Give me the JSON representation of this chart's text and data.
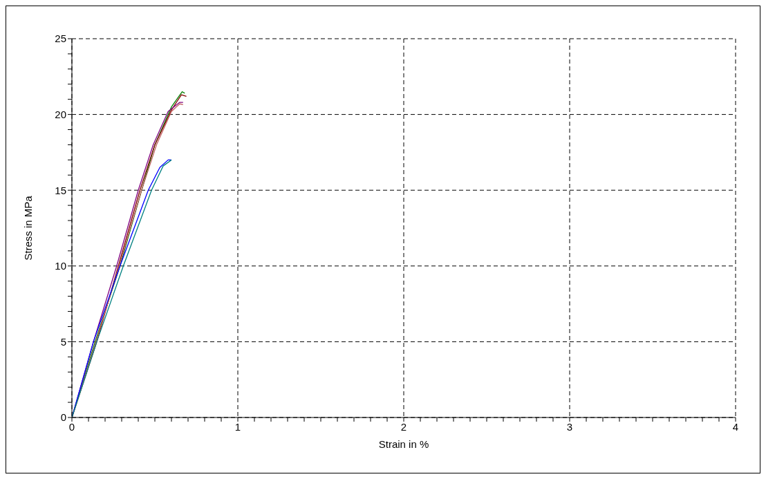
{
  "chart_data": {
    "type": "line",
    "xlabel": "Strain in %",
    "ylabel": "Stress in MPa",
    "xlim": [
      0,
      4
    ],
    "ylim": [
      0,
      25
    ],
    "xticks": [
      0,
      {
        "value": 0.1,
        "label": null
      },
      {
        "value": 0.2,
        "label": null
      },
      {
        "value": 0.3,
        "label": null
      },
      {
        "value": 0.4,
        "label": null
      },
      {
        "value": 0.5,
        "label": null
      },
      {
        "value": 0.6,
        "label": null
      },
      {
        "value": 0.7,
        "label": null
      },
      {
        "value": 0.8,
        "label": null
      },
      {
        "value": 0.9,
        "label": null
      },
      1,
      {
        "value": 1.1,
        "label": null
      },
      {
        "value": 1.2,
        "label": null
      },
      {
        "value": 1.3,
        "label": null
      },
      {
        "value": 1.4,
        "label": null
      },
      {
        "value": 1.5,
        "label": null
      },
      {
        "value": 1.6,
        "label": null
      },
      {
        "value": 1.7,
        "label": null
      },
      {
        "value": 1.8,
        "label": null
      },
      {
        "value": 1.9,
        "label": null
      },
      2,
      {
        "value": 2.1,
        "label": null
      },
      {
        "value": 2.2,
        "label": null
      },
      {
        "value": 2.3,
        "label": null
      },
      {
        "value": 2.4,
        "label": null
      },
      {
        "value": 2.5,
        "label": null
      },
      {
        "value": 2.6,
        "label": null
      },
      {
        "value": 2.7,
        "label": null
      },
      {
        "value": 2.8,
        "label": null
      },
      {
        "value": 2.9,
        "label": null
      },
      3,
      {
        "value": 3.1,
        "label": null
      },
      {
        "value": 3.2,
        "label": null
      },
      {
        "value": 3.3,
        "label": null
      },
      {
        "value": 3.4,
        "label": null
      },
      {
        "value": 3.5,
        "label": null
      },
      {
        "value": 3.6,
        "label": null
      },
      {
        "value": 3.7,
        "label": null
      },
      {
        "value": 3.8,
        "label": null
      },
      {
        "value": 3.9,
        "label": null
      },
      4
    ],
    "yticks": [
      0,
      {
        "value": 1,
        "label": null
      },
      {
        "value": 2,
        "label": null
      },
      {
        "value": 3,
        "label": null
      },
      {
        "value": 4,
        "label": null
      },
      5,
      {
        "value": 6,
        "label": null
      },
      {
        "value": 7,
        "label": null
      },
      {
        "value": 8,
        "label": null
      },
      {
        "value": 9,
        "label": null
      },
      10,
      {
        "value": 11,
        "label": null
      },
      {
        "value": 12,
        "label": null
      },
      {
        "value": 13,
        "label": null
      },
      {
        "value": 14,
        "label": null
      },
      15,
      {
        "value": 16,
        "label": null
      },
      {
        "value": 17,
        "label": null
      },
      {
        "value": 18,
        "label": null
      },
      {
        "value": 19,
        "label": null
      },
      20,
      {
        "value": 21,
        "label": null
      },
      {
        "value": 22,
        "label": null
      },
      {
        "value": 23,
        "label": null
      },
      {
        "value": 24,
        "label": null
      },
      25
    ],
    "grid": true,
    "marker": "none",
    "line_style": "solid",
    "series": [
      {
        "color": "#008000",
        "x": [
          0,
          0.14,
          0.29,
          0.42,
          0.5,
          0.6,
          0.665,
          0.68
        ],
        "values": [
          0,
          5,
          10,
          15,
          18,
          20.5,
          21.5,
          21.4
        ]
      },
      {
        "color": "#800000",
        "x": [
          0,
          0.15,
          0.28,
          0.41,
          0.5,
          0.6,
          0.66,
          0.69
        ],
        "values": [
          0,
          5,
          10,
          15,
          18,
          20.3,
          21.3,
          21.2
        ]
      },
      {
        "color": "#800080",
        "x": [
          0,
          0.13,
          0.27,
          0.4,
          0.49,
          0.58,
          0.65,
          0.67
        ],
        "values": [
          0,
          5,
          10,
          15,
          18,
          20.2,
          20.8,
          20.8
        ]
      },
      {
        "color": "#c06060",
        "x": [
          0,
          0.145,
          0.285,
          0.42,
          0.51,
          0.6,
          0.65,
          0.67
        ],
        "values": [
          0,
          5,
          10,
          15,
          18,
          20.2,
          20.7,
          20.65
        ]
      },
      {
        "color": "#0000ff",
        "x": [
          0,
          0.13,
          0.29,
          0.46,
          0.53,
          0.58,
          0.6
        ],
        "values": [
          0,
          5,
          10,
          15,
          16.5,
          17,
          17
        ]
      },
      {
        "color": "#008080",
        "x": [
          0,
          0.15,
          0.31,
          0.48,
          0.55,
          0.6
        ],
        "values": [
          0,
          5,
          10,
          15,
          16.6,
          17
        ]
      }
    ]
  }
}
